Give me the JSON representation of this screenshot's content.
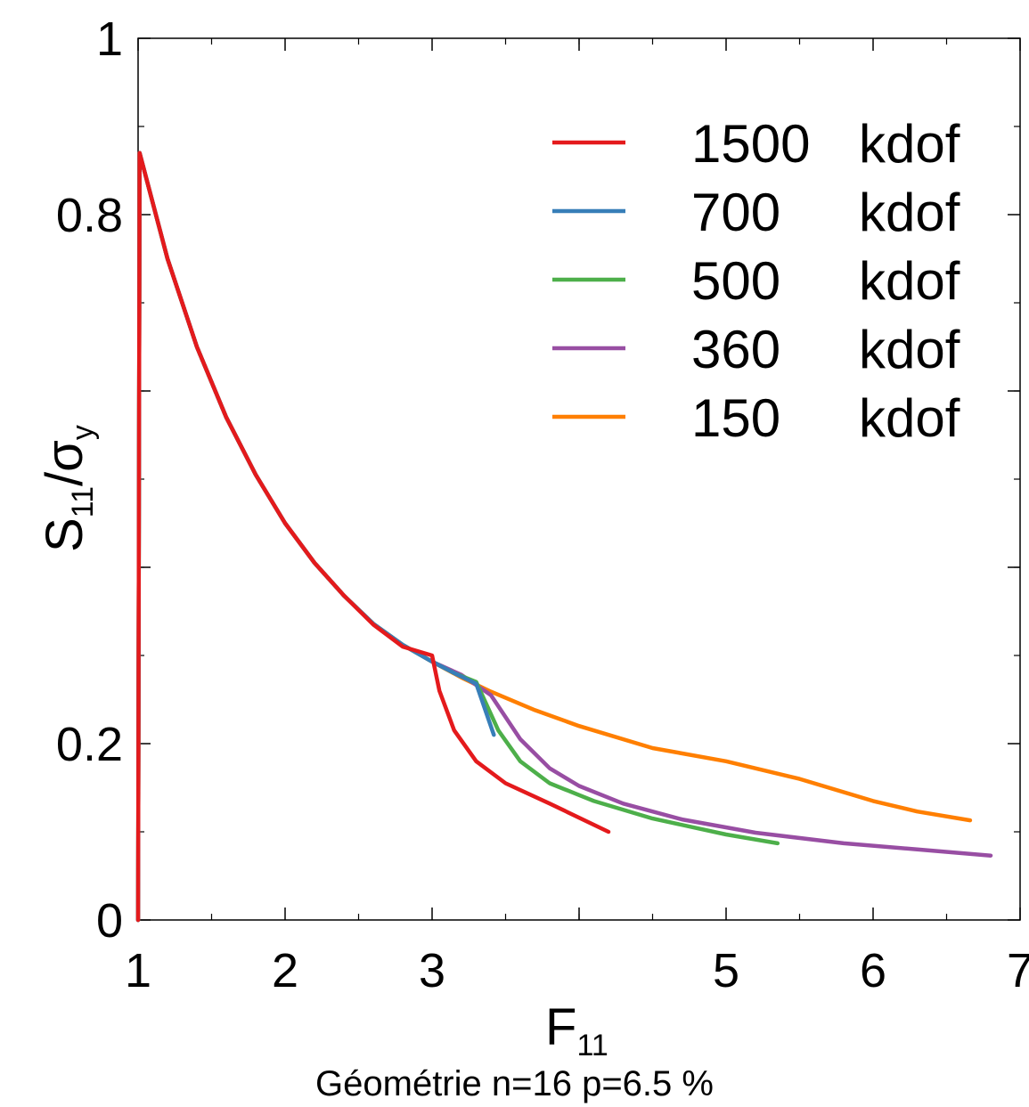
{
  "caption": "Géométrie n=16 p=6.5 %",
  "chart_data": {
    "type": "line",
    "xlabel": {
      "main": "F",
      "sub": "11"
    },
    "ylabel": {
      "main": "S",
      "sub": "11",
      "slash": "/σ",
      "sub2": "y"
    },
    "xlim": [
      1,
      7
    ],
    "ylim": [
      0,
      1
    ],
    "x_ticks": [
      {
        "value": 1,
        "label": "1"
      },
      {
        "value": 2,
        "label": "2"
      },
      {
        "value": 3,
        "label": "3"
      },
      {
        "value": 5,
        "label": "5"
      },
      {
        "value": 6,
        "label": "6"
      },
      {
        "value": 7,
        "label": "7"
      }
    ],
    "x_minor": [
      1.5,
      2.5,
      3.5,
      4,
      4.5,
      5.5,
      6.5
    ],
    "y_ticks": [
      {
        "value": 0,
        "label": "0"
      },
      {
        "value": 0.2,
        "label": "0.2"
      },
      {
        "value": 0.8,
        "label": "0.8"
      },
      {
        "value": 1,
        "label": "1"
      }
    ],
    "y_minor": [
      0.1,
      0.3,
      0.4,
      0.5,
      0.6,
      0.7,
      0.9
    ],
    "grid": false,
    "legend_position": "top-right",
    "series": [
      {
        "name": "1500",
        "unit": "kdof",
        "color": "#e41a1c",
        "points": [
          [
            1.0,
            0.0
          ],
          [
            1.01,
            0.87
          ],
          [
            1.2,
            0.75
          ],
          [
            1.4,
            0.65
          ],
          [
            1.6,
            0.57
          ],
          [
            1.8,
            0.505
          ],
          [
            2.0,
            0.45
          ],
          [
            2.2,
            0.405
          ],
          [
            2.4,
            0.368
          ],
          [
            2.6,
            0.335
          ],
          [
            2.8,
            0.31
          ],
          [
            3.0,
            0.3
          ],
          [
            3.05,
            0.26
          ],
          [
            3.15,
            0.215
          ],
          [
            3.3,
            0.18
          ],
          [
            3.5,
            0.155
          ],
          [
            3.8,
            0.132
          ],
          [
            4.2,
            0.1
          ]
        ]
      },
      {
        "name": "700",
        "unit": "kdof",
        "color": "#377eb8",
        "points": [
          [
            1.0,
            0.0
          ],
          [
            1.01,
            0.87
          ],
          [
            1.2,
            0.75
          ],
          [
            1.4,
            0.65
          ],
          [
            1.6,
            0.57
          ],
          [
            1.8,
            0.505
          ],
          [
            2.0,
            0.45
          ],
          [
            2.2,
            0.405
          ],
          [
            2.4,
            0.368
          ],
          [
            2.6,
            0.336
          ],
          [
            2.8,
            0.312
          ],
          [
            3.0,
            0.293
          ],
          [
            3.15,
            0.28
          ],
          [
            3.3,
            0.268
          ],
          [
            3.42,
            0.21
          ]
        ]
      },
      {
        "name": "500",
        "unit": "kdof",
        "color": "#4daf4a",
        "points": [
          [
            1.0,
            0.0
          ],
          [
            1.01,
            0.87
          ],
          [
            1.2,
            0.75
          ],
          [
            1.4,
            0.65
          ],
          [
            1.6,
            0.57
          ],
          [
            1.8,
            0.505
          ],
          [
            2.0,
            0.45
          ],
          [
            2.2,
            0.405
          ],
          [
            2.4,
            0.368
          ],
          [
            2.6,
            0.336
          ],
          [
            2.8,
            0.312
          ],
          [
            3.0,
            0.293
          ],
          [
            3.15,
            0.28
          ],
          [
            3.3,
            0.27
          ],
          [
            3.45,
            0.215
          ],
          [
            3.6,
            0.18
          ],
          [
            3.8,
            0.155
          ],
          [
            4.1,
            0.135
          ],
          [
            4.5,
            0.115
          ],
          [
            5.0,
            0.097
          ],
          [
            5.35,
            0.087
          ]
        ]
      },
      {
        "name": "360",
        "unit": "kdof",
        "color": "#984ea3",
        "points": [
          [
            1.0,
            0.0
          ],
          [
            1.01,
            0.87
          ],
          [
            1.2,
            0.75
          ],
          [
            1.4,
            0.65
          ],
          [
            1.6,
            0.57
          ],
          [
            1.8,
            0.505
          ],
          [
            2.0,
            0.45
          ],
          [
            2.2,
            0.405
          ],
          [
            2.4,
            0.368
          ],
          [
            2.6,
            0.336
          ],
          [
            2.8,
            0.312
          ],
          [
            3.0,
            0.293
          ],
          [
            3.2,
            0.278
          ],
          [
            3.4,
            0.255
          ],
          [
            3.6,
            0.205
          ],
          [
            3.8,
            0.172
          ],
          [
            4.0,
            0.152
          ],
          [
            4.3,
            0.132
          ],
          [
            4.7,
            0.114
          ],
          [
            5.2,
            0.099
          ],
          [
            5.8,
            0.087
          ],
          [
            6.3,
            0.08
          ],
          [
            6.8,
            0.073
          ]
        ]
      },
      {
        "name": "150",
        "unit": "kdof",
        "color": "#ff7f00",
        "points": [
          [
            1.0,
            0.0
          ],
          [
            1.01,
            0.87
          ],
          [
            1.2,
            0.75
          ],
          [
            1.4,
            0.65
          ],
          [
            1.6,
            0.57
          ],
          [
            1.8,
            0.505
          ],
          [
            2.0,
            0.45
          ],
          [
            2.2,
            0.405
          ],
          [
            2.4,
            0.368
          ],
          [
            2.6,
            0.336
          ],
          [
            2.8,
            0.312
          ],
          [
            3.0,
            0.293
          ],
          [
            3.2,
            0.275
          ],
          [
            3.4,
            0.259
          ],
          [
            3.7,
            0.238
          ],
          [
            4.0,
            0.22
          ],
          [
            4.5,
            0.195
          ],
          [
            5.0,
            0.18
          ],
          [
            5.5,
            0.16
          ],
          [
            6.0,
            0.135
          ],
          [
            6.3,
            0.123
          ],
          [
            6.66,
            0.113
          ]
        ]
      }
    ]
  }
}
